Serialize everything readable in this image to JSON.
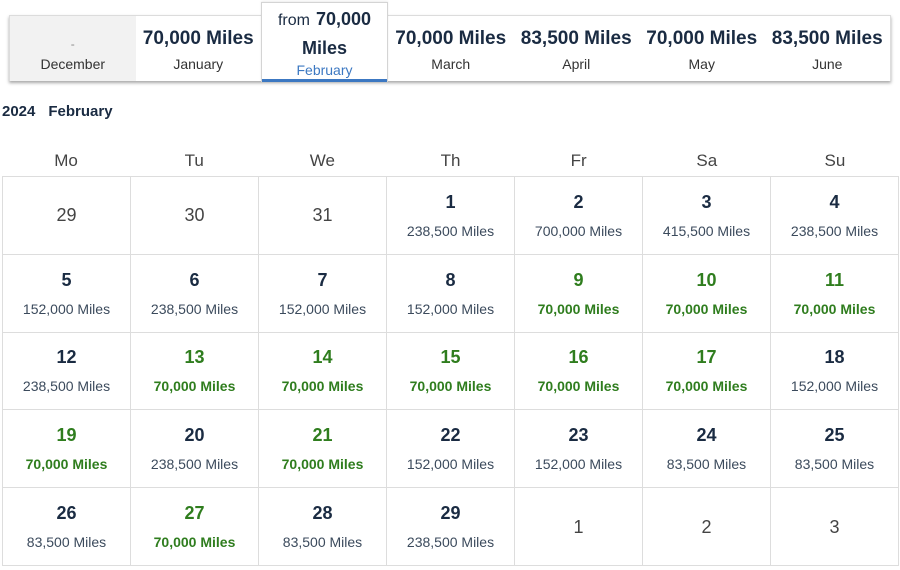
{
  "month_strip": {
    "tabs": [
      {
        "id": "december",
        "price": "-",
        "month": "December",
        "muted": true
      },
      {
        "id": "january",
        "price": "70,000 Miles",
        "month": "January"
      },
      {
        "id": "march",
        "price": "70,000 Miles",
        "month": "March"
      },
      {
        "id": "april",
        "price": "83,500 Miles",
        "month": "April"
      },
      {
        "id": "may",
        "price": "70,000 Miles",
        "month": "May"
      },
      {
        "id": "june",
        "price": "83,500 Miles",
        "month": "June"
      }
    ],
    "selected": {
      "from_label": "from",
      "from_value": "70,000",
      "miles_label": "Miles",
      "month": "February"
    }
  },
  "period": {
    "year": "2024",
    "month": "February"
  },
  "weekdays": [
    "Mo",
    "Tu",
    "We",
    "Th",
    "Fr",
    "Sa",
    "Su"
  ],
  "colors": {
    "accent": "#3c78c2",
    "cheap": "#2f7d1e",
    "text": "#1a2b42"
  },
  "days": [
    {
      "day": "29",
      "miles": "",
      "other": true
    },
    {
      "day": "30",
      "miles": "",
      "other": true
    },
    {
      "day": "31",
      "miles": "",
      "other": true
    },
    {
      "day": "1",
      "miles": "238,500 Miles"
    },
    {
      "day": "2",
      "miles": "700,000 Miles"
    },
    {
      "day": "3",
      "miles": "415,500 Miles"
    },
    {
      "day": "4",
      "miles": "238,500 Miles"
    },
    {
      "day": "5",
      "miles": "152,000 Miles"
    },
    {
      "day": "6",
      "miles": "238,500 Miles"
    },
    {
      "day": "7",
      "miles": "152,000 Miles"
    },
    {
      "day": "8",
      "miles": "152,000 Miles"
    },
    {
      "day": "9",
      "miles": "70,000 Miles",
      "cheap": true
    },
    {
      "day": "10",
      "miles": "70,000 Miles",
      "cheap": true
    },
    {
      "day": "11",
      "miles": "70,000 Miles",
      "cheap": true
    },
    {
      "day": "12",
      "miles": "238,500 Miles"
    },
    {
      "day": "13",
      "miles": "70,000 Miles",
      "cheap": true
    },
    {
      "day": "14",
      "miles": "70,000 Miles",
      "cheap": true
    },
    {
      "day": "15",
      "miles": "70,000 Miles",
      "cheap": true
    },
    {
      "day": "16",
      "miles": "70,000 Miles",
      "cheap": true
    },
    {
      "day": "17",
      "miles": "70,000 Miles",
      "cheap": true
    },
    {
      "day": "18",
      "miles": "152,000 Miles"
    },
    {
      "day": "19",
      "miles": "70,000 Miles",
      "cheap": true
    },
    {
      "day": "20",
      "miles": "238,500 Miles"
    },
    {
      "day": "21",
      "miles": "70,000 Miles",
      "cheap": true
    },
    {
      "day": "22",
      "miles": "152,000 Miles"
    },
    {
      "day": "23",
      "miles": "152,000 Miles"
    },
    {
      "day": "24",
      "miles": "83,500 Miles"
    },
    {
      "day": "25",
      "miles": "83,500 Miles"
    },
    {
      "day": "26",
      "miles": "83,500 Miles"
    },
    {
      "day": "27",
      "miles": "70,000 Miles",
      "cheap": true
    },
    {
      "day": "28",
      "miles": "83,500 Miles"
    },
    {
      "day": "29",
      "miles": "238,500 Miles"
    },
    {
      "day": "1",
      "miles": "",
      "other": true
    },
    {
      "day": "2",
      "miles": "",
      "other": true
    },
    {
      "day": "3",
      "miles": "",
      "other": true
    }
  ]
}
